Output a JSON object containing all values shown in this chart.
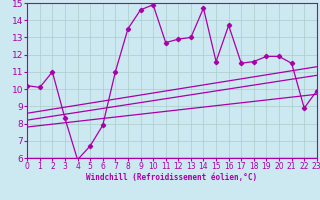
{
  "xlabel": "Windchill (Refroidissement éolien,°C)",
  "bg_color": "#cce8f0",
  "grid_color": "#aacccc",
  "line_color": "#aa00aa",
  "tick_color": "#aa00aa",
  "label_color": "#aa00aa",
  "ylim": [
    6,
    15
  ],
  "xlim": [
    0,
    23
  ],
  "yticks": [
    6,
    7,
    8,
    9,
    10,
    11,
    12,
    13,
    14,
    15
  ],
  "xticks": [
    0,
    1,
    2,
    3,
    4,
    5,
    6,
    7,
    8,
    9,
    10,
    11,
    12,
    13,
    14,
    15,
    16,
    17,
    18,
    19,
    20,
    21,
    22,
    23
  ],
  "main_x": [
    0,
    1,
    2,
    3,
    4,
    5,
    6,
    7,
    8,
    9,
    10,
    11,
    12,
    13,
    14,
    15,
    16,
    17,
    18,
    19,
    20,
    21,
    22,
    23
  ],
  "main_y": [
    10.2,
    10.1,
    11.0,
    8.3,
    5.9,
    6.7,
    7.9,
    11.0,
    13.5,
    14.6,
    14.9,
    12.7,
    12.9,
    13.0,
    14.7,
    11.6,
    13.7,
    11.5,
    11.6,
    11.9,
    11.9,
    11.5,
    8.9,
    9.9
  ],
  "line1_x": [
    0,
    23
  ],
  "line1_y": [
    8.6,
    11.3
  ],
  "line2_x": [
    0,
    23
  ],
  "line2_y": [
    8.2,
    10.8
  ],
  "line3_x": [
    0,
    23
  ],
  "line3_y": [
    7.8,
    9.7
  ]
}
